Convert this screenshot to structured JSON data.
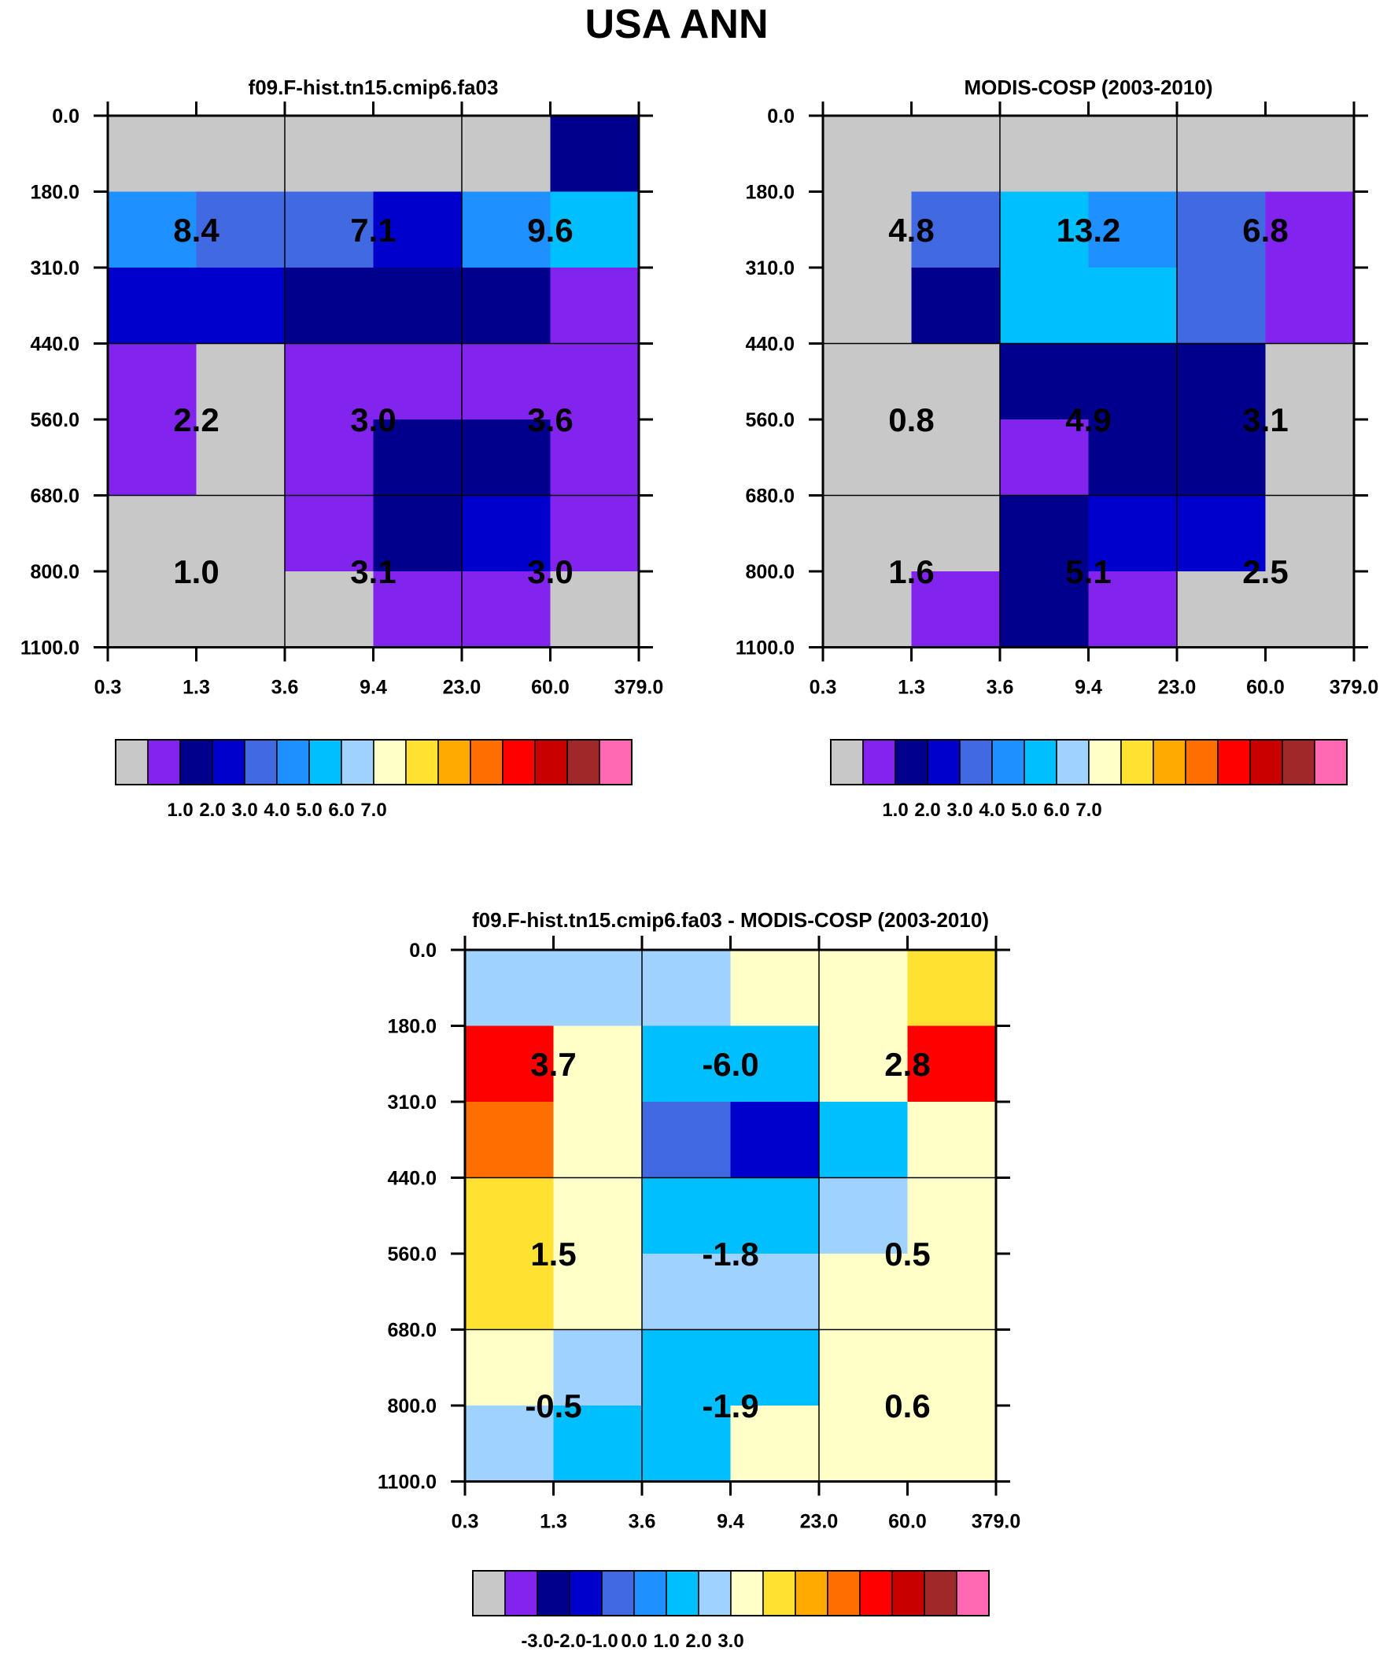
{
  "figure_title": "USA ANN",
  "y_ticks": [
    "0.0",
    "180.0",
    "310.0",
    "440.0",
    "560.0",
    "680.0",
    "800.0",
    "1100.0"
  ],
  "x_ticks": [
    "0.3",
    "1.3",
    "3.6",
    "9.4",
    "23.0",
    "60.0",
    "379.0"
  ],
  "palette": [
    "#c8c8c8",
    "#8224ee",
    "#00008c",
    "#0000cd",
    "#4169e1",
    "#1e90ff",
    "#00bfff",
    "#a0d2ff",
    "#ffffc8",
    "#ffe132",
    "#ffaa00",
    "#ff6e00",
    "#ff0000",
    "#c80000",
    "#a02828",
    "#ff69b4"
  ],
  "colorbar_abs_labels": [
    "1.0",
    "2.0",
    "3.0",
    "4.0",
    "5.0",
    "6.0",
    "7.0"
  ],
  "colorbar_diff_labels": [
    "-3.0",
    "-2.0",
    "-1.0",
    "0.0",
    "1.0",
    "2.0",
    "3.0"
  ],
  "chart_data": [
    {
      "type": "heatmap",
      "title": "f09.F-hist.tn15.cmip6.fa03",
      "x_categories": [
        "0.3-1.3",
        "1.3-3.6",
        "3.6-9.4",
        "9.4-23.0",
        "23.0-60.0",
        "60.0-379.0"
      ],
      "y_categories": [
        "0.0-180.0",
        "180.0-310.0",
        "310.0-440.0",
        "440.0-560.0",
        "560.0-680.0",
        "680.0-800.0",
        "800.0-1100.0"
      ],
      "color_index": [
        [
          0,
          0,
          0,
          0,
          0,
          2
        ],
        [
          5,
          4,
          4,
          3,
          5,
          6
        ],
        [
          3,
          3,
          2,
          2,
          2,
          1
        ],
        [
          1,
          0,
          1,
          1,
          1,
          1
        ],
        [
          1,
          0,
          1,
          2,
          2,
          1
        ],
        [
          0,
          0,
          1,
          2,
          3,
          1
        ],
        [
          0,
          0,
          0,
          1,
          1,
          0
        ]
      ],
      "grouped_values": [
        [
          "8.4",
          "7.1",
          "9.6"
        ],
        [
          "2.2",
          "3.0",
          "3.6"
        ],
        [
          "1.0",
          "3.1",
          "3.0"
        ]
      ]
    },
    {
      "type": "heatmap",
      "title": "MODIS-COSP (2003-2010)",
      "x_categories": [
        "0.3-1.3",
        "1.3-3.6",
        "3.6-9.4",
        "9.4-23.0",
        "23.0-60.0",
        "60.0-379.0"
      ],
      "y_categories": [
        "0.0-180.0",
        "180.0-310.0",
        "310.0-440.0",
        "440.0-560.0",
        "560.0-680.0",
        "680.0-800.0",
        "800.0-1100.0"
      ],
      "color_index": [
        [
          0,
          0,
          0,
          0,
          0,
          0
        ],
        [
          0,
          4,
          6,
          5,
          4,
          1
        ],
        [
          0,
          2,
          6,
          6,
          4,
          1
        ],
        [
          0,
          0,
          2,
          2,
          2,
          0
        ],
        [
          0,
          0,
          1,
          2,
          2,
          0
        ],
        [
          0,
          0,
          2,
          3,
          3,
          0
        ],
        [
          0,
          1,
          2,
          1,
          0,
          0
        ]
      ],
      "grouped_values": [
        [
          "4.8",
          "13.2",
          "6.8"
        ],
        [
          "0.8",
          "4.9",
          "3.1"
        ],
        [
          "1.6",
          "5.1",
          "2.5"
        ]
      ]
    },
    {
      "type": "heatmap",
      "title": "f09.F-hist.tn15.cmip6.fa03 - MODIS-COSP (2003-2010)",
      "x_categories": [
        "0.3-1.3",
        "1.3-3.6",
        "3.6-9.4",
        "9.4-23.0",
        "23.0-60.0",
        "60.0-379.0"
      ],
      "y_categories": [
        "0.0-180.0",
        "180.0-310.0",
        "310.0-440.0",
        "440.0-560.0",
        "560.0-680.0",
        "680.0-800.0",
        "800.0-1100.0"
      ],
      "color_index": [
        [
          7,
          7,
          7,
          8,
          8,
          9
        ],
        [
          12,
          8,
          6,
          6,
          8,
          12
        ],
        [
          11,
          8,
          4,
          3,
          6,
          8
        ],
        [
          9,
          8,
          6,
          6,
          7,
          8
        ],
        [
          9,
          8,
          7,
          7,
          8,
          8
        ],
        [
          8,
          7,
          6,
          6,
          8,
          8
        ],
        [
          7,
          6,
          6,
          8,
          8,
          8
        ]
      ],
      "grouped_values": [
        [
          "3.7",
          "-6.0",
          "2.8"
        ],
        [
          "1.5",
          "-1.8",
          "0.5"
        ],
        [
          "-0.5",
          "-1.9",
          "0.6"
        ]
      ]
    }
  ]
}
